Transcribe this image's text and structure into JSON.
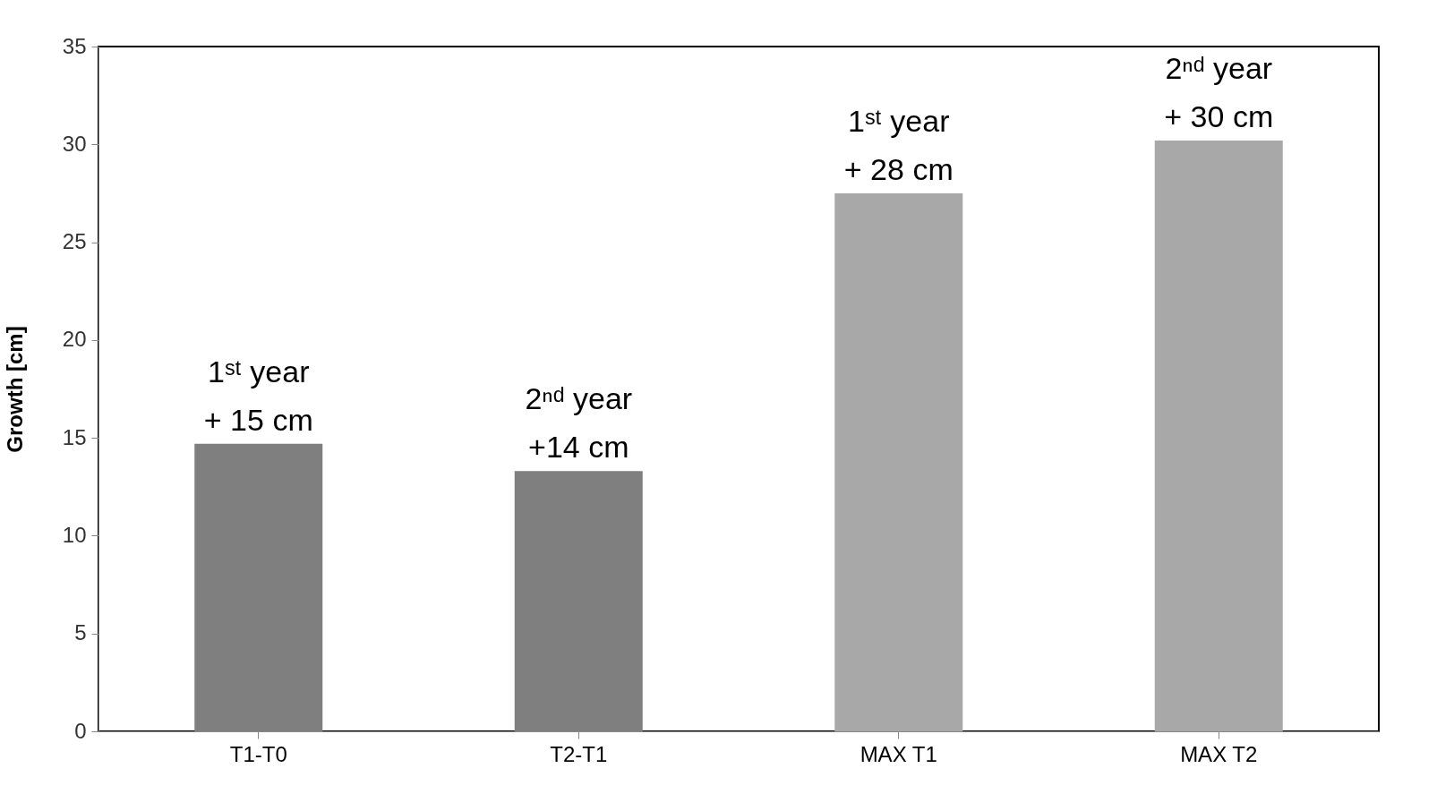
{
  "chart_data": {
    "type": "bar",
    "ylabel": "Growth [cm]",
    "categories": [
      "T1-T0",
      "T2-T1",
      "MAX T1",
      "MAX T2"
    ],
    "values": [
      14.7,
      13.3,
      27.5,
      30.2
    ],
    "colors": [
      "#7f7f7f",
      "#7f7f7f",
      "#a8a8a8",
      "#a8a8a8"
    ],
    "ylim": [
      0,
      35
    ],
    "yticks": [
      0,
      5,
      10,
      15,
      20,
      25,
      30,
      35
    ],
    "grid": false,
    "annotations": [
      {
        "text": "1ˢᵗ year\n+ 15 cm",
        "x": "T1-T0",
        "y": 14.7
      },
      {
        "text": "2ⁿᵈ year\n+14 cm",
        "x": "T2-T1",
        "y": 13.3
      },
      {
        "text": "1ˢᵗ year\n+ 28 cm",
        "x": "MAX T1",
        "y": 27.5
      },
      {
        "text": "2ⁿᵈ year\n+ 30 cm",
        "x": "MAX T2",
        "y": 30.2
      }
    ]
  }
}
